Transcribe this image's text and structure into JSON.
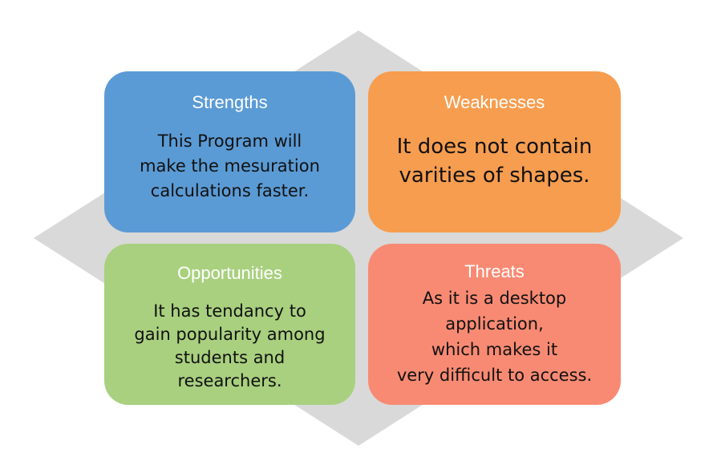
{
  "colors": {
    "diamond": "#d9d9d9",
    "strengths": "#5b9bd5",
    "weaknesses": "#f79d4f",
    "opportunities": "#a9d07f",
    "threats": "#f88a73"
  },
  "swot": {
    "strengths": {
      "title": "Strengths",
      "body": "This Program will\nmake the mesuration\ncalculations faster."
    },
    "weaknesses": {
      "title": "Weaknesses",
      "body": "It does not contain\nvarities of shapes."
    },
    "opportunities": {
      "title": "Opportunities",
      "body": "It has tendancy to\ngain popularity among\nstudents and\nresearchers."
    },
    "threats": {
      "title": "Threats",
      "body": "As it is a desktop\napplication,\nwhich makes it\nvery difficult to access."
    }
  }
}
